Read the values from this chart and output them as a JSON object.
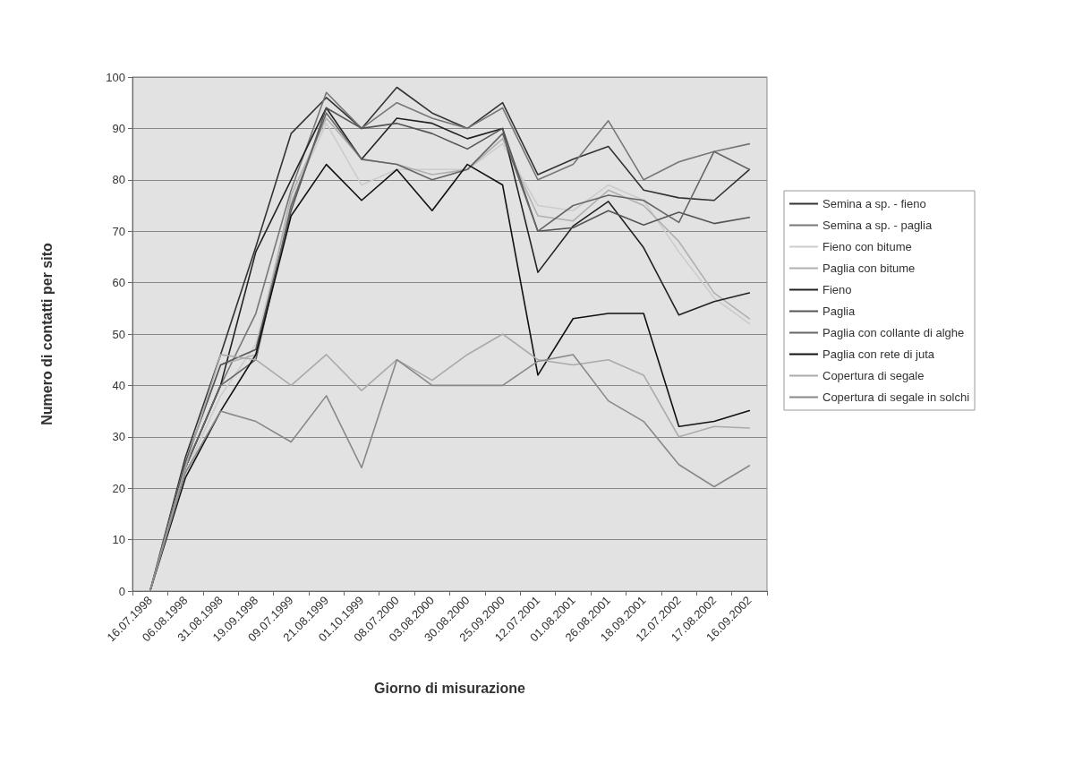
{
  "chart_data": {
    "type": "line",
    "xlabel": "Giorno di misurazione",
    "ylabel": "Numero di contatti per sito",
    "categories": [
      "16.07.1998",
      "06.08.1998",
      "31.08.1998",
      "19.09.1998",
      "09.07.1999",
      "21.08.1999",
      "01.10.1999",
      "08.07.2000",
      "03.08.2000",
      "30.08.2000",
      "25.09.2000",
      "12.07.2001",
      "01.08.2001",
      "26.08.2001",
      "18.09.2001",
      "12.07.2002",
      "17.08.2002",
      "16.09.2002"
    ],
    "series": [
      {
        "name": "Semina a sp. - fieno",
        "color": "#333333",
        "values": [
          0,
          26,
          46,
          67,
          89,
          96,
          90,
          98,
          93,
          90,
          95,
          81,
          84,
          86.5,
          78,
          76.5,
          76,
          82
        ]
      },
      {
        "name": "Semina a sp. - paglia",
        "color": "#777777",
        "values": [
          0,
          24,
          40,
          54,
          78,
          97,
          90,
          95,
          92,
          90,
          94,
          80,
          83,
          91.5,
          80,
          83.5,
          85.5,
          87
        ]
      },
      {
        "name": "Fieno con bitume",
        "color": "#cccccc",
        "values": [
          0,
          23,
          38,
          48,
          76,
          91,
          79,
          82,
          82,
          82,
          87,
          75,
          74,
          79,
          76,
          66,
          57,
          52
        ]
      },
      {
        "name": "Paglia con bitume",
        "color": "#b0b0b0",
        "values": [
          0,
          25,
          44,
          46,
          77,
          92,
          84,
          83,
          81,
          82,
          88,
          73,
          72,
          78,
          75,
          68,
          58,
          53
        ]
      },
      {
        "name": "Fieno",
        "color": "#222222",
        "values": [
          0,
          24,
          40,
          66,
          80,
          94,
          84,
          92,
          91,
          88,
          90,
          62,
          71,
          75.8,
          66.8,
          53.7,
          56.3,
          58
        ]
      },
      {
        "name": "Paglia",
        "color": "#555555",
        "values": [
          0,
          25,
          44,
          47,
          74,
          94,
          90,
          91,
          89,
          86,
          90,
          70,
          70.7,
          74,
          71.2,
          73.7,
          71.5,
          72.7
        ]
      },
      {
        "name": "Paglia con collante di alghe",
        "color": "#666666",
        "values": [
          0,
          24,
          40,
          45,
          75,
          93,
          84,
          83,
          80,
          82,
          89,
          70,
          75,
          77,
          76,
          71.7,
          85.5,
          82
        ]
      },
      {
        "name": "Paglia con rete di juta",
        "color": "#111111",
        "values": [
          0,
          22,
          35,
          46,
          73,
          83,
          76,
          82,
          74,
          83,
          79,
          42,
          53,
          54,
          54,
          32,
          33,
          35.1
        ]
      },
      {
        "name": "Copertura di segale",
        "color": "#aaaaaa",
        "values": [
          0,
          24,
          46,
          45,
          40,
          46,
          39,
          45,
          41,
          46,
          50,
          45,
          44,
          45,
          42,
          30,
          32,
          31.7
        ]
      },
      {
        "name": "Copertura di segale in solchi",
        "color": "#888888",
        "values": [
          0,
          23,
          35,
          33,
          29,
          38,
          24,
          45,
          40,
          40,
          40,
          44.7,
          46,
          37,
          33,
          24.6,
          20.3,
          24.4
        ]
      }
    ],
    "ylim": [
      0,
      100
    ],
    "yticks": [
      0,
      10,
      20,
      30,
      40,
      50,
      60,
      70,
      80,
      90,
      100
    ],
    "grid": "y",
    "legend": "right",
    "marker": "none",
    "line_style": "solid"
  }
}
